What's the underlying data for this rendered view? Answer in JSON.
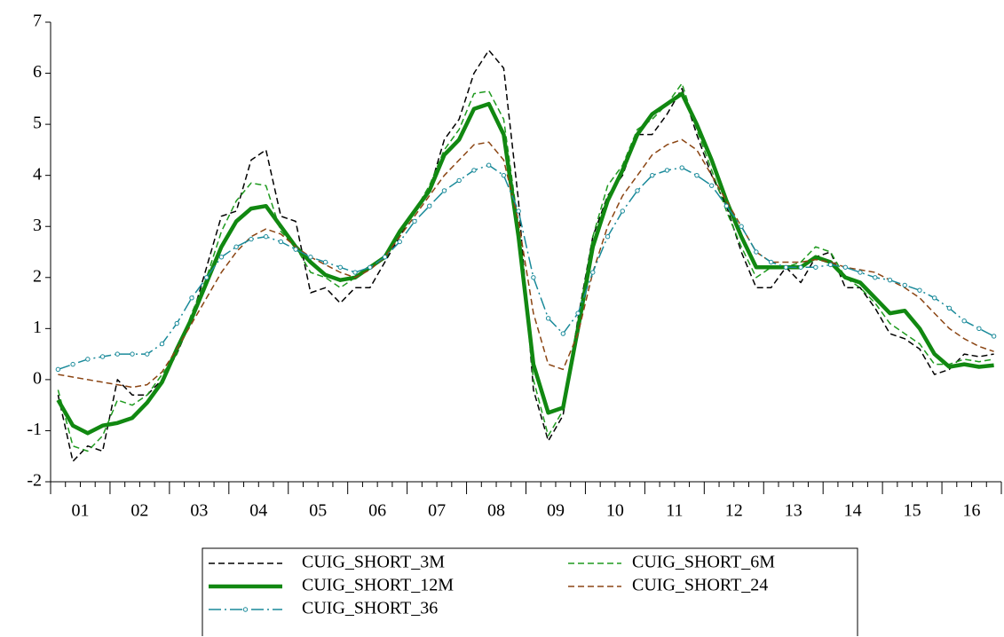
{
  "chart_data": {
    "type": "line",
    "categories": [
      null,
      "01",
      null,
      null,
      null,
      "02",
      null,
      null,
      null,
      "03",
      null,
      null,
      null,
      "04",
      null,
      null,
      null,
      "05",
      null,
      null,
      null,
      "06",
      null,
      null,
      null,
      "07",
      null,
      null,
      null,
      "08",
      null,
      null,
      null,
      "09",
      null,
      null,
      null,
      "10",
      null,
      null,
      null,
      "11",
      null,
      null,
      null,
      "12",
      null,
      null,
      null,
      "13",
      null,
      null,
      null,
      "14",
      null,
      null,
      null,
      "15",
      null,
      null,
      null,
      "16",
      null,
      null
    ],
    "ylim": [
      -2,
      7
    ],
    "yticks": [
      -2,
      -1,
      0,
      1,
      2,
      3,
      4,
      5,
      6,
      7
    ],
    "series": [
      {
        "name": "CUIG_SHORT_3M",
        "color": "#000000",
        "style": "dashed",
        "width": 1.5,
        "values": [
          -0.3,
          -1.6,
          -1.3,
          -1.4,
          0.0,
          -0.3,
          -0.3,
          0.0,
          0.5,
          1.2,
          2.2,
          3.2,
          3.3,
          4.3,
          4.5,
          3.2,
          3.1,
          1.7,
          1.8,
          1.5,
          1.8,
          1.8,
          2.3,
          2.8,
          3.3,
          3.7,
          4.7,
          5.1,
          6.0,
          6.45,
          6.1,
          3.5,
          -0.2,
          -1.2,
          -0.7,
          1.2,
          2.8,
          3.6,
          4.0,
          4.8,
          4.8,
          5.2,
          5.7,
          4.8,
          4.0,
          3.4,
          2.5,
          1.8,
          1.8,
          2.2,
          1.9,
          2.4,
          2.5,
          1.8,
          1.8,
          1.4,
          0.9,
          0.8,
          0.6,
          0.1,
          0.2,
          0.5,
          0.45,
          0.5
        ]
      },
      {
        "name": "CUIG_SHORT_6M",
        "color": "#1f9a1f",
        "style": "dashed",
        "width": 1.5,
        "values": [
          -0.2,
          -1.3,
          -1.4,
          -1.1,
          -0.4,
          -0.5,
          -0.3,
          0.1,
          0.5,
          1.3,
          2.0,
          2.9,
          3.5,
          3.85,
          3.8,
          2.9,
          2.6,
          2.1,
          2.0,
          1.8,
          2.0,
          2.2,
          2.4,
          2.9,
          3.3,
          3.8,
          4.5,
          4.9,
          5.6,
          5.65,
          5.1,
          3.0,
          0.0,
          -1.1,
          -0.6,
          1.1,
          2.8,
          3.8,
          4.2,
          4.9,
          5.1,
          5.4,
          5.8,
          4.9,
          4.1,
          3.3,
          2.6,
          2.0,
          2.2,
          2.2,
          2.3,
          2.6,
          2.5,
          2.0,
          1.8,
          1.5,
          1.1,
          0.9,
          0.7,
          0.3,
          0.3,
          0.4,
          0.35,
          0.4
        ]
      },
      {
        "name": "CUIG_SHORT_12M",
        "color": "#118811",
        "style": "solid",
        "width": 4.5,
        "values": [
          -0.4,
          -0.9,
          -1.05,
          -0.9,
          -0.85,
          -0.75,
          -0.45,
          -0.05,
          0.6,
          1.2,
          1.9,
          2.6,
          3.1,
          3.35,
          3.4,
          3.0,
          2.6,
          2.3,
          2.05,
          1.95,
          2.0,
          2.2,
          2.4,
          2.9,
          3.3,
          3.7,
          4.4,
          4.7,
          5.3,
          5.4,
          4.8,
          2.8,
          0.3,
          -0.65,
          -0.55,
          1.0,
          2.6,
          3.5,
          4.1,
          4.8,
          5.2,
          5.4,
          5.6,
          5.0,
          4.3,
          3.5,
          2.8,
          2.2,
          2.2,
          2.2,
          2.2,
          2.4,
          2.3,
          2.0,
          1.9,
          1.6,
          1.3,
          1.35,
          1.0,
          0.5,
          0.25,
          0.3,
          0.25,
          0.28
        ]
      },
      {
        "name": "CUIG_SHORT_24",
        "color": "#8b4513",
        "style": "dashed",
        "width": 1.5,
        "values": [
          0.1,
          0.05,
          0.0,
          -0.05,
          -0.1,
          -0.15,
          -0.1,
          0.15,
          0.6,
          1.1,
          1.6,
          2.1,
          2.5,
          2.8,
          2.95,
          2.85,
          2.6,
          2.4,
          2.25,
          2.1,
          2.0,
          2.15,
          2.4,
          2.8,
          3.2,
          3.6,
          4.0,
          4.3,
          4.6,
          4.65,
          4.3,
          3.1,
          1.3,
          0.3,
          0.2,
          0.9,
          2.1,
          3.0,
          3.6,
          4.0,
          4.4,
          4.6,
          4.7,
          4.5,
          4.0,
          3.5,
          3.0,
          2.5,
          2.3,
          2.3,
          2.3,
          2.35,
          2.3,
          2.2,
          2.15,
          2.1,
          1.95,
          1.8,
          1.6,
          1.3,
          1.0,
          0.8,
          0.65,
          0.55
        ]
      },
      {
        "name": "CUIG_SHORT_36",
        "color": "#1a8a9a",
        "style": "dashdot",
        "marker": "circle",
        "width": 1.5,
        "values": [
          0.2,
          0.3,
          0.4,
          0.45,
          0.5,
          0.5,
          0.5,
          0.7,
          1.1,
          1.6,
          2.0,
          2.4,
          2.6,
          2.75,
          2.8,
          2.7,
          2.55,
          2.4,
          2.3,
          2.2,
          2.1,
          2.2,
          2.4,
          2.7,
          3.1,
          3.4,
          3.7,
          3.9,
          4.1,
          4.2,
          4.0,
          3.3,
          2.0,
          1.2,
          0.9,
          1.3,
          2.1,
          2.8,
          3.3,
          3.7,
          4.0,
          4.1,
          4.15,
          4.0,
          3.8,
          3.4,
          3.0,
          2.5,
          2.3,
          2.2,
          2.2,
          2.2,
          2.25,
          2.2,
          2.1,
          2.0,
          1.95,
          1.85,
          1.75,
          1.6,
          1.4,
          1.15,
          1.0,
          0.85
        ]
      }
    ]
  }
}
